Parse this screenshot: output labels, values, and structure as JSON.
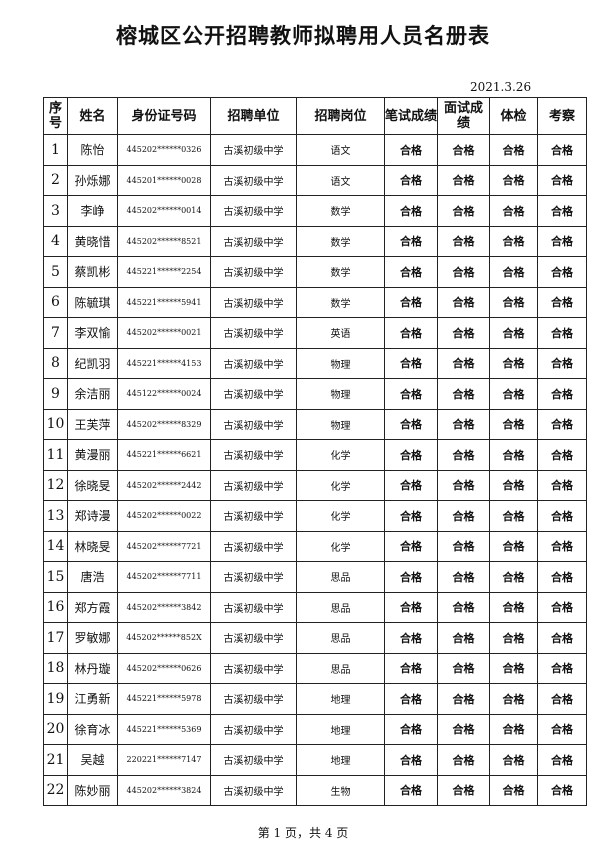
{
  "header": {
    "title": "榕城区公开招聘教师拟聘用人员名册表",
    "date": "2021.3.26"
  },
  "table": {
    "columns": [
      "序号",
      "姓名",
      "身份证号码",
      "招聘单位",
      "招聘岗位",
      "笔试成绩",
      "面试成绩",
      "体检",
      "考察"
    ],
    "rows": [
      [
        1,
        "陈怡",
        "445202******0326",
        "古溪初级中学",
        "语文",
        "合格",
        "合格",
        "合格",
        "合格"
      ],
      [
        2,
        "孙烁娜",
        "445201******0028",
        "古溪初级中学",
        "语文",
        "合格",
        "合格",
        "合格",
        "合格"
      ],
      [
        3,
        "李峥",
        "445202******0014",
        "古溪初级中学",
        "数学",
        "合格",
        "合格",
        "合格",
        "合格"
      ],
      [
        4,
        "黄晓惜",
        "445202******8521",
        "古溪初级中学",
        "数学",
        "合格",
        "合格",
        "合格",
        "合格"
      ],
      [
        5,
        "蔡凯彬",
        "445221******2254",
        "古溪初级中学",
        "数学",
        "合格",
        "合格",
        "合格",
        "合格"
      ],
      [
        6,
        "陈毓琪",
        "445221******5941",
        "古溪初级中学",
        "数学",
        "合格",
        "合格",
        "合格",
        "合格"
      ],
      [
        7,
        "李双愉",
        "445202******0021",
        "古溪初级中学",
        "英语",
        "合格",
        "合格",
        "合格",
        "合格"
      ],
      [
        8,
        "纪凯羽",
        "445221******4153",
        "古溪初级中学",
        "物理",
        "合格",
        "合格",
        "合格",
        "合格"
      ],
      [
        9,
        "余洁丽",
        "445122******0024",
        "古溪初级中学",
        "物理",
        "合格",
        "合格",
        "合格",
        "合格"
      ],
      [
        10,
        "王芙萍",
        "445202******8329",
        "古溪初级中学",
        "物理",
        "合格",
        "合格",
        "合格",
        "合格"
      ],
      [
        11,
        "黄漫丽",
        "445221******6621",
        "古溪初级中学",
        "化学",
        "合格",
        "合格",
        "合格",
        "合格"
      ],
      [
        12,
        "徐晓旻",
        "445202******2442",
        "古溪初级中学",
        "化学",
        "合格",
        "合格",
        "合格",
        "合格"
      ],
      [
        13,
        "郑诗漫",
        "445202******0022",
        "古溪初级中学",
        "化学",
        "合格",
        "合格",
        "合格",
        "合格"
      ],
      [
        14,
        "林晓旻",
        "445202******7721",
        "古溪初级中学",
        "化学",
        "合格",
        "合格",
        "合格",
        "合格"
      ],
      [
        15,
        "唐浩",
        "445202******7711",
        "古溪初级中学",
        "思品",
        "合格",
        "合格",
        "合格",
        "合格"
      ],
      [
        16,
        "郑方霞",
        "445202******3842",
        "古溪初级中学",
        "思品",
        "合格",
        "合格",
        "合格",
        "合格"
      ],
      [
        17,
        "罗敏娜",
        "445202******852X",
        "古溪初级中学",
        "思品",
        "合格",
        "合格",
        "合格",
        "合格"
      ],
      [
        18,
        "林丹璇",
        "445202******0626",
        "古溪初级中学",
        "思品",
        "合格",
        "合格",
        "合格",
        "合格"
      ],
      [
        19,
        "江勇新",
        "445221******5978",
        "古溪初级中学",
        "地理",
        "合格",
        "合格",
        "合格",
        "合格"
      ],
      [
        20,
        "徐育冰",
        "445221******5369",
        "古溪初级中学",
        "地理",
        "合格",
        "合格",
        "合格",
        "合格"
      ],
      [
        21,
        "吴越",
        "220221******7147",
        "古溪初级中学",
        "地理",
        "合格",
        "合格",
        "合格",
        "合格"
      ],
      [
        22,
        "陈妙丽",
        "445202******3824",
        "古溪初级中学",
        "生物",
        "合格",
        "合格",
        "合格",
        "合格"
      ]
    ]
  },
  "footer": {
    "page": "第 1 页，共 4 页"
  }
}
